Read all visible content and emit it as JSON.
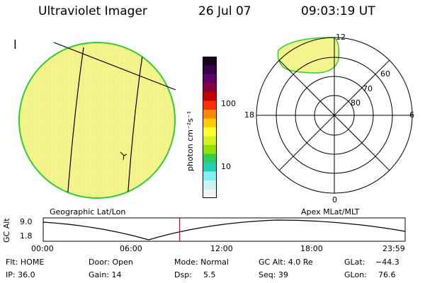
{
  "header": {
    "instrument": "Ultraviolet Imager",
    "date": "26 Jul 07",
    "time": "09:03:19 UT"
  },
  "image_panel": {
    "mark_label": "l",
    "caption": "Geographic Lat/Lon"
  },
  "colorbar": {
    "unit_label": "photon cm⁻²s⁻¹",
    "tick_labels": [
      "100",
      "10"
    ],
    "colors": [
      "#1a0020",
      "#3a0050",
      "#600068",
      "#8a0040",
      "#c80000",
      "#ff3000",
      "#ff8800",
      "#ffcc00",
      "#ffff30",
      "#d8f020",
      "#90e000",
      "#30d050",
      "#20d0b0",
      "#80f0f0",
      "#c8f4f4",
      "#f4f4f4"
    ]
  },
  "polar_panel": {
    "caption": "Apex MLat/MLT",
    "mlt_labels": {
      "top": "12",
      "left": "18",
      "right": "6",
      "bottom": "0"
    },
    "lat_labels": [
      "80",
      "70",
      "60"
    ]
  },
  "altitude_plot": {
    "ylabel": "GC Alt",
    "ymax_label": "9.0",
    "ymin_label": "1.8",
    "x_ticks": [
      "00:00",
      "06:00",
      "12:00",
      "18:00",
      "23:59"
    ],
    "current_time_frac": 0.377
  },
  "status": {
    "filter": "Flt: HOME",
    "ip": "IP: 36.0",
    "door": "Door: Open",
    "gain": "Gain: 14",
    "mode": "Mode: Normal",
    "dsp_label": "Dsp:",
    "dsp_value": "5.5",
    "gc_alt": "GC Alt: 4.0 Re",
    "seq": "Seq: 39",
    "glat_label": "GLat:",
    "glat_value": "−44.3",
    "glon_label": "GLon:",
    "glon_value": "76.6"
  },
  "colors": {
    "earth_fill": "#f4f48c",
    "earth_edge": "#33cc33",
    "oval_fill": "#f4f48c",
    "time_marker": "#dd0000"
  }
}
